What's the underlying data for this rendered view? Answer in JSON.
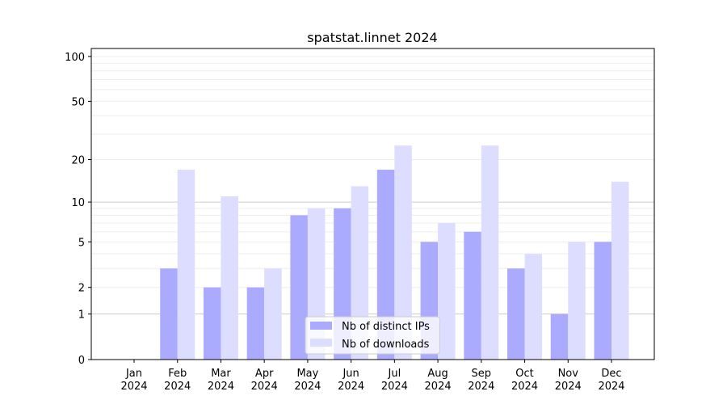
{
  "chart_data": {
    "type": "bar",
    "title": "spatstat.linnet 2024",
    "xlabel": "",
    "ylabel": "",
    "yscale": "log10(1+y)",
    "ylim": [
      0,
      113
    ],
    "yticks": [
      0,
      1,
      2,
      5,
      10,
      20,
      50,
      100
    ],
    "grid": true,
    "legend_position": "bottom-center",
    "categories": [
      {
        "month": "Jan",
        "year": "2024"
      },
      {
        "month": "Feb",
        "year": "2024"
      },
      {
        "month": "Mar",
        "year": "2024"
      },
      {
        "month": "Apr",
        "year": "2024"
      },
      {
        "month": "May",
        "year": "2024"
      },
      {
        "month": "Jun",
        "year": "2024"
      },
      {
        "month": "Jul",
        "year": "2024"
      },
      {
        "month": "Aug",
        "year": "2024"
      },
      {
        "month": "Sep",
        "year": "2024"
      },
      {
        "month": "Oct",
        "year": "2024"
      },
      {
        "month": "Nov",
        "year": "2024"
      },
      {
        "month": "Dec",
        "year": "2024"
      }
    ],
    "series": [
      {
        "name": "Nb of distinct IPs",
        "color": "#aaaaff",
        "values": [
          0,
          3,
          2,
          2,
          8,
          9,
          17,
          5,
          6,
          3,
          1,
          5
        ]
      },
      {
        "name": "Nb of downloads",
        "color": "#ddddff",
        "values": [
          0,
          17,
          11,
          3,
          9,
          13,
          25,
          7,
          25,
          4,
          5,
          14
        ]
      }
    ]
  }
}
